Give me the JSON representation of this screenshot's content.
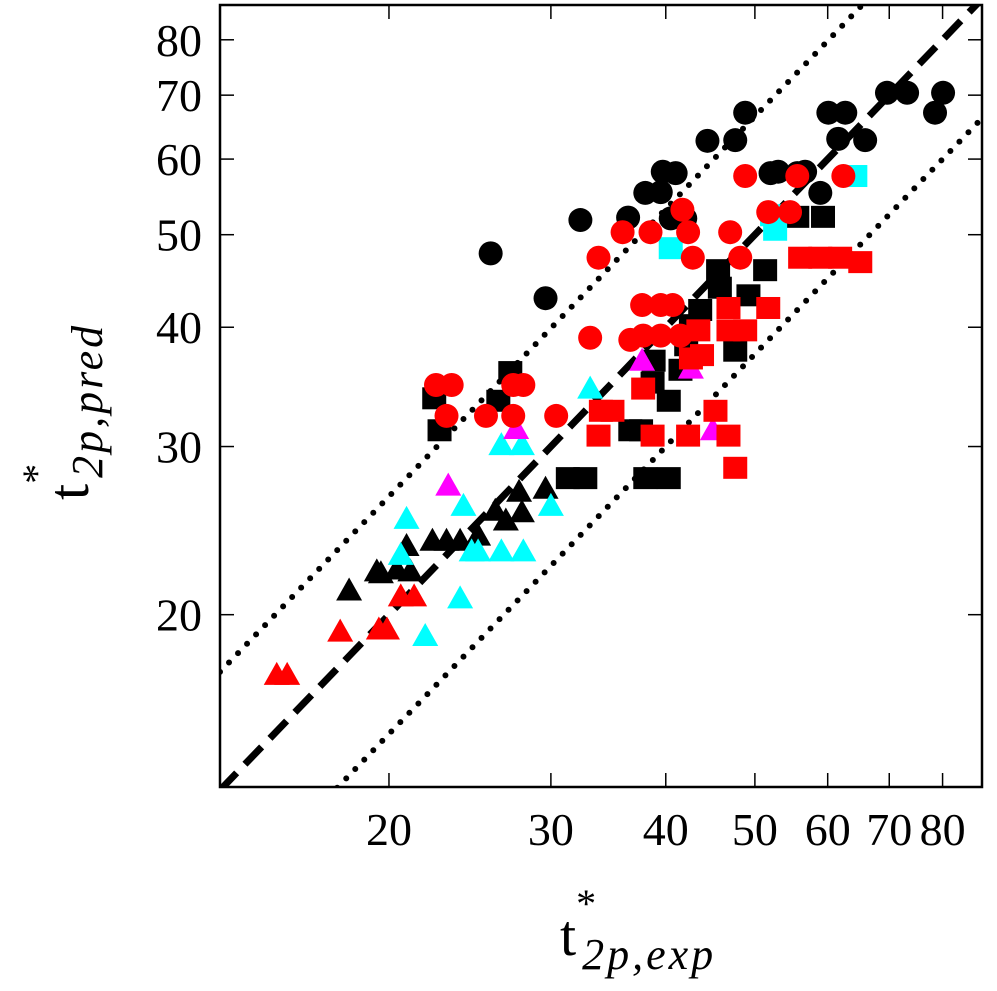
{
  "chart_data": {
    "type": "scatter",
    "log_x": true,
    "log_y": true,
    "xlabel": {
      "text": "t",
      "sup": "*",
      "sub": "2p,exp"
    },
    "ylabel": {
      "text": "t",
      "sup": "*",
      "sub": "2p,pred"
    },
    "xlim": [
      13.1,
      88.3
    ],
    "ylim": [
      13.2,
      87.0
    ],
    "xticks": [
      20,
      30,
      40,
      50,
      60,
      70,
      80
    ],
    "yticks": [
      20,
      30,
      40,
      50,
      60,
      70,
      80
    ],
    "reference_lines": [
      {
        "slope": 1,
        "style": "dashed"
      },
      {
        "slope": 1.33,
        "style": "dotted"
      },
      {
        "slope": 0.75,
        "style": "dotted"
      }
    ],
    "series": [
      {
        "marker": "circle",
        "color": "#000000",
        "x": [
          25.8,
          29.6,
          32.3,
          36.4,
          38.0,
          39.5,
          39.7,
          41.0,
          40.5,
          42.0,
          44.4,
          47.6,
          48.8,
          52.0,
          53.0,
          55.6,
          56.7,
          58.9,
          60.1,
          62.7,
          61.6,
          65.9,
          69.6,
          73.2,
          78.5,
          80.1
        ],
        "y": [
          47.8,
          42.9,
          51.8,
          52.1,
          55.3,
          55.4,
          58.2,
          58.0,
          52.0,
          52.0,
          62.7,
          62.8,
          67.1,
          58.0,
          58.2,
          58.0,
          58.2,
          55.3,
          67.1,
          67.1,
          63.0,
          62.8,
          70.4,
          70.4,
          67.1,
          70.4
        ]
      },
      {
        "marker": "square",
        "color": "#000000",
        "x": [
          22.4,
          22.7,
          27.1,
          26.3,
          31.3,
          32.7,
          36.6,
          38.0,
          40.3,
          38.7,
          40.3,
          41.5,
          42.1,
          42.6,
          43.6,
          45.6,
          45.8,
          47.6,
          49.2,
          51.3,
          55.6,
          59.3,
          38.8,
          37.6
        ],
        "y": [
          33.7,
          31.2,
          35.9,
          33.5,
          27.8,
          27.8,
          31.2,
          27.8,
          27.8,
          35.0,
          33.5,
          36.1,
          38.3,
          40.2,
          41.7,
          45.9,
          44.0,
          37.8,
          43.2,
          45.9,
          52.2,
          52.2,
          36.9,
          31.2
        ]
      },
      {
        "marker": "triangle",
        "color": "#000000",
        "x": [
          18.1,
          19.4,
          20.4,
          21.1,
          20.9,
          22.3,
          23.1,
          23.9,
          25.0,
          26.1,
          26.8,
          27.7,
          27.9,
          29.6,
          19.6
        ],
        "y": [
          21.2,
          22.2,
          22.3,
          22.2,
          23.6,
          23.9,
          23.9,
          23.9,
          24.2,
          25.7,
          25.1,
          26.9,
          25.6,
          27.1,
          22.1
        ]
      },
      {
        "marker": "square",
        "color": "#00ffff",
        "x": [
          40.5,
          52.6,
          64.3,
          52.2
        ],
        "y": [
          48.4,
          50.6,
          57.6,
          52.4
        ]
      },
      {
        "marker": "triangle",
        "color": "#00ffff",
        "x": [
          20.9,
          24.1,
          24.6,
          25.0,
          26.5,
          28.0,
          23.9,
          21.9,
          26.5,
          27.9,
          30.0,
          33.1,
          20.6
        ],
        "y": [
          25.2,
          26.0,
          23.3,
          23.3,
          23.3,
          23.3,
          20.8,
          19.0,
          30.1,
          30.1,
          26.0,
          34.5,
          23.1
        ]
      },
      {
        "marker": "triangle",
        "color": "#ff00ff",
        "x": [
          23.2,
          27.5,
          37.7,
          42.6,
          45.0
        ],
        "y": [
          27.3,
          31.3,
          36.9,
          36.2,
          31.2
        ]
      },
      {
        "marker": "circle",
        "color": "#ff0000",
        "x": [
          33.8,
          35.9,
          38.5,
          41.7,
          42.3,
          42.8,
          47.0,
          48.8,
          48.2,
          51.7,
          54.6,
          55.6,
          62.4,
          37.7,
          39.5,
          40.7,
          37.8,
          39.5,
          41.5,
          33.1,
          36.6,
          22.5,
          23.4,
          27.3,
          28.0,
          23.1,
          25.5,
          27.3,
          30.4
        ],
        "y": [
          47.3,
          50.3,
          50.3,
          53.1,
          50.3,
          47.3,
          50.3,
          57.6,
          47.3,
          52.8,
          52.8,
          57.6,
          57.6,
          42.2,
          42.2,
          42.2,
          39.2,
          39.2,
          39.2,
          39.0,
          38.8,
          34.8,
          34.8,
          34.8,
          34.8,
          32.3,
          32.3,
          32.3,
          32.3
        ]
      },
      {
        "marker": "square",
        "color": "#ff0000",
        "x": [
          34.0,
          35.0,
          37.8,
          33.8,
          38.7,
          42.3,
          42.6,
          43.8,
          45.3,
          46.8,
          47.6,
          46.8,
          48.8,
          46.8,
          51.7,
          56.0,
          58.9,
          61.9,
          65.1,
          43.4
        ],
        "y": [
          32.7,
          32.7,
          34.5,
          30.8,
          30.8,
          30.8,
          37.1,
          37.4,
          32.7,
          30.8,
          28.5,
          39.7,
          39.7,
          41.9,
          41.9,
          47.3,
          47.3,
          47.3,
          46.8,
          39.7
        ]
      },
      {
        "marker": "triangle",
        "color": "#ff0000",
        "x": [
          15.1,
          15.5,
          17.7,
          19.5,
          19.9,
          20.6,
          21.3
        ],
        "y": [
          17.3,
          17.3,
          19.2,
          19.3,
          19.3,
          20.9,
          20.9
        ]
      }
    ]
  }
}
